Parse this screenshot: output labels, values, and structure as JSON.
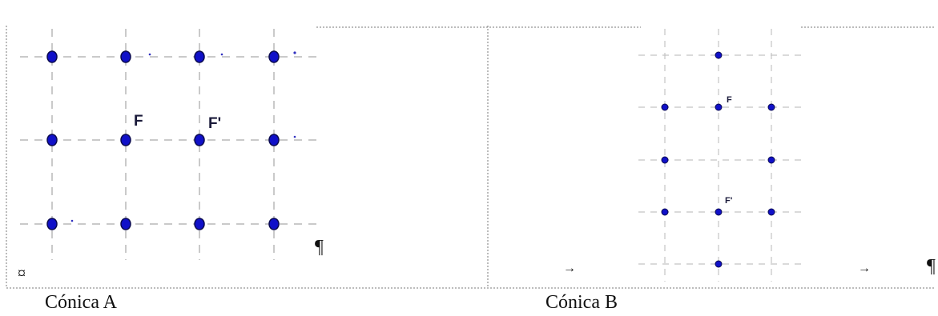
{
  "panel_a": {
    "caption": "Cónica A",
    "foci_labels": [
      "F",
      "F'"
    ],
    "marks": {
      "pilcrow": "¶",
      "cell_end": "¤"
    }
  },
  "panel_b": {
    "caption": "Cónica B",
    "foci_labels": [
      "F",
      "F'"
    ],
    "marks": {
      "tab_left": "→",
      "tab_right": "→",
      "pilcrow": "¶"
    }
  },
  "colors": {
    "point": "#1010c8",
    "grid": "#b8b8b8",
    "border": "#7a7a7a"
  }
}
